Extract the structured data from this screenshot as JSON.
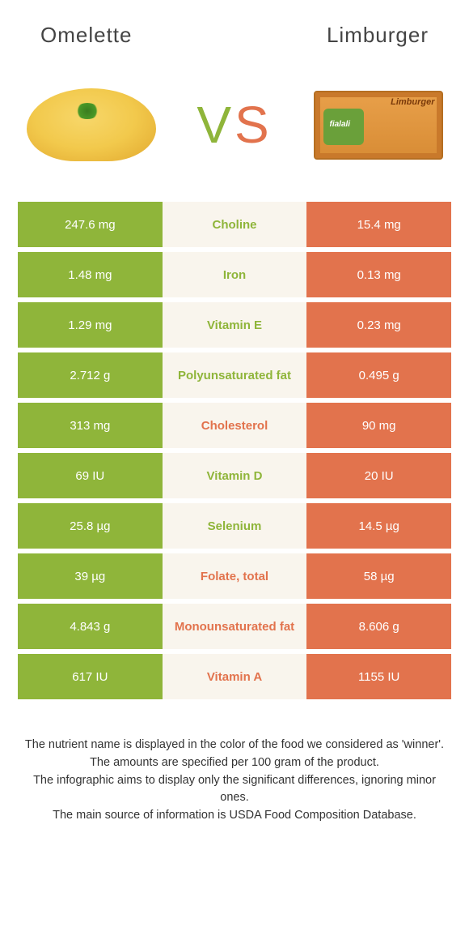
{
  "colors": {
    "green": "#8fb53a",
    "orange": "#e2734d",
    "mid_bg": "#f9f5ed",
    "green_text": "#8fb53a",
    "orange_text": "#e2734d"
  },
  "header": {
    "left_title": "Omelette",
    "right_title": "Limburger"
  },
  "vs": {
    "v": "V",
    "s": "S"
  },
  "cheese": {
    "brand": "fialali",
    "name": "Limburger"
  },
  "rows": [
    {
      "left": "247.6 mg",
      "label": "Choline",
      "right": "15.4 mg",
      "winner": "left"
    },
    {
      "left": "1.48 mg",
      "label": "Iron",
      "right": "0.13 mg",
      "winner": "left"
    },
    {
      "left": "1.29 mg",
      "label": "Vitamin E",
      "right": "0.23 mg",
      "winner": "left"
    },
    {
      "left": "2.712 g",
      "label": "Polyunsaturated fat",
      "right": "0.495 g",
      "winner": "left"
    },
    {
      "left": "313 mg",
      "label": "Cholesterol",
      "right": "90 mg",
      "winner": "right"
    },
    {
      "left": "69 IU",
      "label": "Vitamin D",
      "right": "20 IU",
      "winner": "left"
    },
    {
      "left": "25.8 µg",
      "label": "Selenium",
      "right": "14.5 µg",
      "winner": "left"
    },
    {
      "left": "39 µg",
      "label": "Folate, total",
      "right": "58 µg",
      "winner": "right"
    },
    {
      "left": "4.843 g",
      "label": "Monounsaturated fat",
      "right": "8.606 g",
      "winner": "right"
    },
    {
      "left": "617 IU",
      "label": "Vitamin A",
      "right": "1155 IU",
      "winner": "right"
    }
  ],
  "footer": {
    "line1": "The nutrient name is displayed in the color of the food we considered as 'winner'.",
    "line2": "The amounts are specified per 100 gram of the product.",
    "line3": "The infographic aims to display only the significant differences, ignoring minor ones.",
    "line4": "The main source of information is USDA Food Composition Database."
  }
}
